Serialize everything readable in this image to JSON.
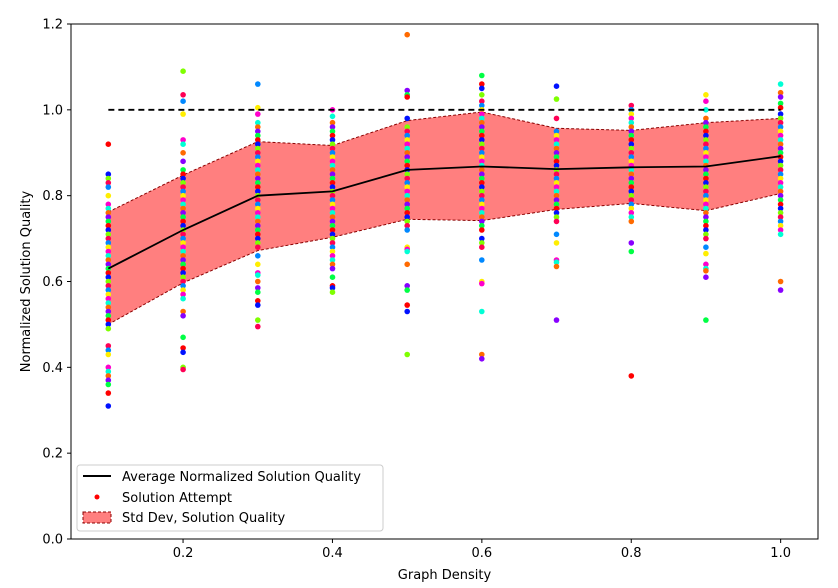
{
  "chart_data": {
    "type": "scatter",
    "xlabel": "Graph Density",
    "ylabel": "Normalized Solution Quality",
    "xlim": [
      0.05,
      1.05
    ],
    "ylim": [
      0.0,
      1.2
    ],
    "xticks": [
      0.2,
      0.4,
      0.6,
      0.8,
      1.0
    ],
    "xtick_labels": [
      "0.2",
      "0.4",
      "0.6",
      "0.8",
      "1.0"
    ],
    "yticks": [
      0.0,
      0.2,
      0.4,
      0.6,
      0.8,
      1.0,
      1.2
    ],
    "ytick_labels": [
      "0.0",
      "0.2",
      "0.4",
      "0.6",
      "0.8",
      "1.0",
      "1.2"
    ],
    "grid": false,
    "legend_position": "lower-left",
    "x": [
      0.1,
      0.2,
      0.3,
      0.4,
      0.5,
      0.6,
      0.7,
      0.8,
      0.9,
      1.0
    ],
    "reference_line": {
      "y": 1.0,
      "style": "dashed",
      "color": "#000000"
    },
    "series": [
      {
        "name": "Average Normalized Solution Quality",
        "kind": "line",
        "color": "#000000",
        "values": [
          0.63,
          0.72,
          0.8,
          0.81,
          0.86,
          0.868,
          0.862,
          0.866,
          0.868,
          0.892
        ]
      },
      {
        "name": "Std Dev, Solution Quality",
        "kind": "band",
        "color": "#ff7f7f",
        "edge_color": "#8b0000",
        "upper": [
          0.762,
          0.848,
          0.926,
          0.917,
          0.975,
          0.995,
          0.957,
          0.952,
          0.97,
          0.98
        ],
        "lower": [
          0.5,
          0.597,
          0.672,
          0.703,
          0.745,
          0.742,
          0.768,
          0.782,
          0.765,
          0.805
        ]
      },
      {
        "name": "Solution Attempt",
        "kind": "scatter",
        "color": "#ff0000",
        "points_by_x": [
          [
            0.92,
            0.85,
            0.84,
            0.83,
            0.82,
            0.8,
            0.78,
            0.77,
            0.76,
            0.75,
            0.74,
            0.73,
            0.72,
            0.71,
            0.7,
            0.69,
            0.68,
            0.67,
            0.66,
            0.65,
            0.64,
            0.63,
            0.62,
            0.61,
            0.6,
            0.59,
            0.58,
            0.57,
            0.56,
            0.55,
            0.54,
            0.53,
            0.52,
            0.51,
            0.5,
            0.49,
            0.45,
            0.44,
            0.43,
            0.4,
            0.39,
            0.38,
            0.37,
            0.36,
            0.34,
            0.31
          ],
          [
            1.09,
            1.035,
            1.02,
            0.99,
            0.93,
            0.92,
            0.9,
            0.88,
            0.86,
            0.85,
            0.84,
            0.83,
            0.82,
            0.81,
            0.8,
            0.79,
            0.78,
            0.77,
            0.76,
            0.75,
            0.74,
            0.73,
            0.72,
            0.71,
            0.7,
            0.69,
            0.68,
            0.67,
            0.66,
            0.65,
            0.64,
            0.63,
            0.62,
            0.61,
            0.6,
            0.59,
            0.58,
            0.57,
            0.56,
            0.53,
            0.52,
            0.47,
            0.445,
            0.435,
            0.4,
            0.395
          ],
          [
            1.06,
            1.005,
            0.99,
            0.97,
            0.96,
            0.95,
            0.94,
            0.93,
            0.92,
            0.91,
            0.9,
            0.89,
            0.88,
            0.87,
            0.86,
            0.85,
            0.84,
            0.83,
            0.82,
            0.81,
            0.8,
            0.79,
            0.78,
            0.77,
            0.76,
            0.75,
            0.74,
            0.73,
            0.72,
            0.71,
            0.7,
            0.69,
            0.68,
            0.66,
            0.64,
            0.62,
            0.615,
            0.6,
            0.585,
            0.575,
            0.555,
            0.545,
            0.51,
            0.495
          ],
          [
            1.0,
            0.985,
            0.97,
            0.96,
            0.95,
            0.94,
            0.93,
            0.92,
            0.91,
            0.9,
            0.89,
            0.88,
            0.87,
            0.86,
            0.85,
            0.84,
            0.83,
            0.82,
            0.81,
            0.8,
            0.79,
            0.78,
            0.77,
            0.76,
            0.75,
            0.74,
            0.73,
            0.72,
            0.71,
            0.7,
            0.69,
            0.68,
            0.67,
            0.66,
            0.65,
            0.64,
            0.63,
            0.61,
            0.59,
            0.585,
            0.575
          ],
          [
            1.175,
            1.045,
            1.035,
            1.03,
            0.98,
            0.96,
            0.95,
            0.94,
            0.93,
            0.92,
            0.91,
            0.9,
            0.89,
            0.88,
            0.87,
            0.86,
            0.85,
            0.84,
            0.83,
            0.82,
            0.81,
            0.8,
            0.79,
            0.78,
            0.77,
            0.76,
            0.75,
            0.74,
            0.73,
            0.72,
            0.68,
            0.675,
            0.67,
            0.64,
            0.59,
            0.58,
            0.545,
            0.53,
            0.43
          ],
          [
            1.08,
            1.06,
            1.05,
            1.035,
            1.02,
            1.01,
            1.0,
            0.99,
            0.98,
            0.97,
            0.96,
            0.95,
            0.94,
            0.93,
            0.92,
            0.91,
            0.9,
            0.89,
            0.88,
            0.87,
            0.86,
            0.85,
            0.84,
            0.83,
            0.82,
            0.81,
            0.8,
            0.79,
            0.78,
            0.77,
            0.76,
            0.75,
            0.74,
            0.73,
            0.72,
            0.7,
            0.69,
            0.68,
            0.65,
            0.6,
            0.595,
            0.53,
            0.43,
            0.42
          ],
          [
            1.055,
            1.025,
            0.98,
            0.95,
            0.94,
            0.93,
            0.92,
            0.91,
            0.9,
            0.89,
            0.88,
            0.87,
            0.86,
            0.85,
            0.84,
            0.83,
            0.82,
            0.81,
            0.8,
            0.79,
            0.78,
            0.77,
            0.76,
            0.75,
            0.74,
            0.71,
            0.69,
            0.65,
            0.645,
            0.635,
            0.51
          ],
          [
            1.01,
            1.0,
            0.99,
            0.98,
            0.97,
            0.96,
            0.95,
            0.94,
            0.93,
            0.92,
            0.91,
            0.9,
            0.89,
            0.88,
            0.87,
            0.86,
            0.85,
            0.84,
            0.83,
            0.82,
            0.81,
            0.8,
            0.79,
            0.78,
            0.77,
            0.76,
            0.75,
            0.74,
            0.69,
            0.67,
            0.38
          ],
          [
            1.035,
            1.02,
            1.0,
            0.98,
            0.97,
            0.96,
            0.95,
            0.94,
            0.93,
            0.92,
            0.91,
            0.9,
            0.89,
            0.88,
            0.87,
            0.86,
            0.85,
            0.84,
            0.83,
            0.82,
            0.81,
            0.8,
            0.79,
            0.78,
            0.77,
            0.76,
            0.75,
            0.74,
            0.73,
            0.72,
            0.71,
            0.7,
            0.68,
            0.665,
            0.64,
            0.63,
            0.625,
            0.61,
            0.51
          ],
          [
            1.06,
            1.04,
            1.03,
            1.015,
            1.005,
            0.99,
            0.98,
            0.97,
            0.96,
            0.95,
            0.94,
            0.93,
            0.92,
            0.91,
            0.9,
            0.89,
            0.88,
            0.87,
            0.86,
            0.85,
            0.84,
            0.83,
            0.82,
            0.81,
            0.8,
            0.79,
            0.78,
            0.77,
            0.76,
            0.75,
            0.74,
            0.73,
            0.72,
            0.71,
            0.6,
            0.58
          ]
        ]
      }
    ]
  }
}
